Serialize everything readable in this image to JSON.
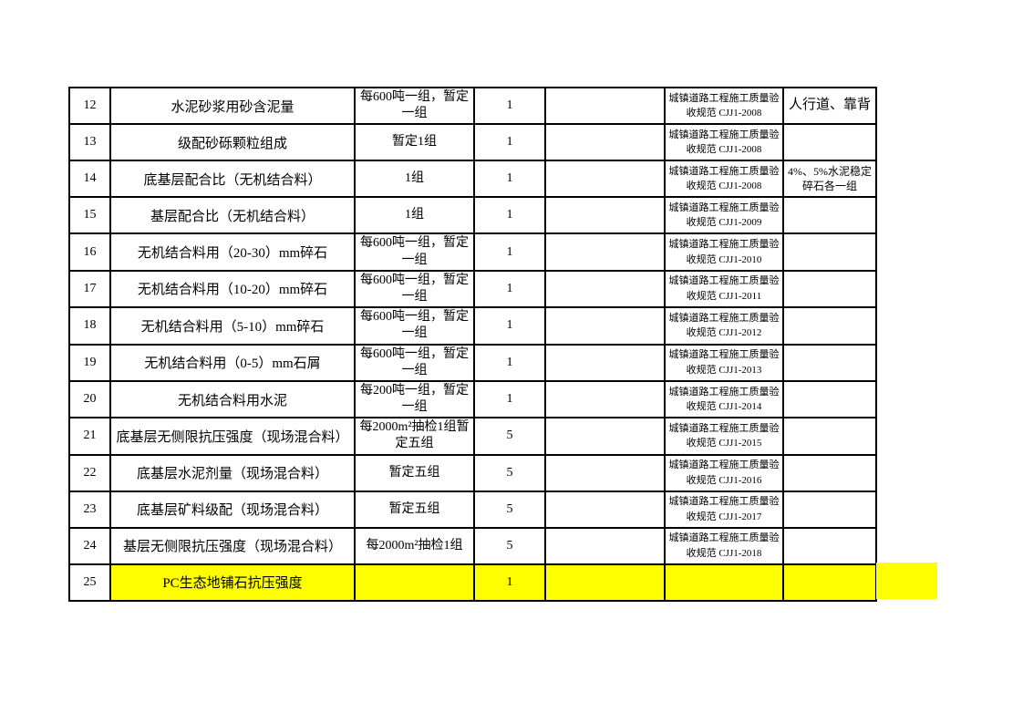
{
  "page": {
    "background_color": "#ffffff",
    "highlight_color": "#ffff00",
    "border_color": "#000000"
  },
  "table": {
    "rows": [
      {
        "no": "12",
        "item": "水泥砂浆用砂含泥量",
        "frequency": "每600吨一组，暂定一组",
        "count": "1",
        "blank": "",
        "standard": "城镇道路工程施工质量验收规范 CJJ1-2008",
        "notes": "人行道、靠背",
        "highlight": false
      },
      {
        "no": "13",
        "item": "级配砂砾颗粒组成",
        "frequency": "暂定1组",
        "count": "1",
        "blank": "",
        "standard": "城镇道路工程施工质量验收规范 CJJ1-2008",
        "notes": "",
        "highlight": false
      },
      {
        "no": "14",
        "item": "底基层配合比（无机结合料）",
        "frequency": "1组",
        "count": "1",
        "blank": "",
        "standard": "城镇道路工程施工质量验收规范 CJJ1-2008",
        "notes": "4%、5%水泥稳定碎石各一组",
        "highlight": false
      },
      {
        "no": "15",
        "item": "基层配合比（无机结合料）",
        "frequency": "1组",
        "count": "1",
        "blank": "",
        "standard": "城镇道路工程施工质量验收规范 CJJ1-2009",
        "notes": "",
        "highlight": false
      },
      {
        "no": "16",
        "item": "无机结合料用（20-30）mm碎石",
        "frequency": "每600吨一组，暂定一组",
        "count": "1",
        "blank": "",
        "standard": "城镇道路工程施工质量验收规范 CJJ1-2010",
        "notes": "",
        "highlight": false
      },
      {
        "no": "17",
        "item": "无机结合料用（10-20）mm碎石",
        "frequency": "每600吨一组，暂定一组",
        "count": "1",
        "blank": "",
        "standard": "城镇道路工程施工质量验收规范 CJJ1-2011",
        "notes": "",
        "highlight": false
      },
      {
        "no": "18",
        "item": "无机结合料用（5-10）mm碎石",
        "frequency": "每600吨一组，暂定一组",
        "count": "1",
        "blank": "",
        "standard": "城镇道路工程施工质量验收规范 CJJ1-2012",
        "notes": "",
        "highlight": false
      },
      {
        "no": "19",
        "item": "无机结合料用（0-5）mm石屑",
        "frequency": "每600吨一组，暂定一组",
        "count": "1",
        "blank": "",
        "standard": "城镇道路工程施工质量验收规范 CJJ1-2013",
        "notes": "",
        "highlight": false
      },
      {
        "no": "20",
        "item": "无机结合料用水泥",
        "frequency": "每200吨一组，暂定一组",
        "count": "1",
        "blank": "",
        "standard": "城镇道路工程施工质量验收规范 CJJ1-2014",
        "notes": "",
        "highlight": false
      },
      {
        "no": "21",
        "item": "底基层无侧限抗压强度（现场混合料）",
        "frequency": "每2000m²抽检1组暂定五组",
        "count": "5",
        "blank": "",
        "standard": "城镇道路工程施工质量验收规范 CJJ1-2015",
        "notes": "",
        "highlight": false
      },
      {
        "no": "22",
        "item": "底基层水泥剂量（现场混合料）",
        "frequency": "暂定五组",
        "count": "5",
        "blank": "",
        "standard": "城镇道路工程施工质量验收规范 CJJ1-2016",
        "notes": "",
        "highlight": false
      },
      {
        "no": "23",
        "item": "底基层矿料级配（现场混合料）",
        "frequency": "暂定五组",
        "count": "5",
        "blank": "",
        "standard": "城镇道路工程施工质量验收规范 CJJ1-2017",
        "notes": "",
        "highlight": false
      },
      {
        "no": "24",
        "item": "基层无侧限抗压强度（现场混合料）",
        "frequency": "每2000m²抽检1组",
        "count": "5",
        "blank": "",
        "standard": "城镇道路工程施工质量验收规范 CJJ1-2018",
        "notes": "",
        "highlight": false
      },
      {
        "no": "25",
        "item": "PC生态地铺石抗压强度",
        "frequency": "",
        "count": "1",
        "blank": "",
        "standard": "",
        "notes": "",
        "highlight": true
      }
    ]
  }
}
